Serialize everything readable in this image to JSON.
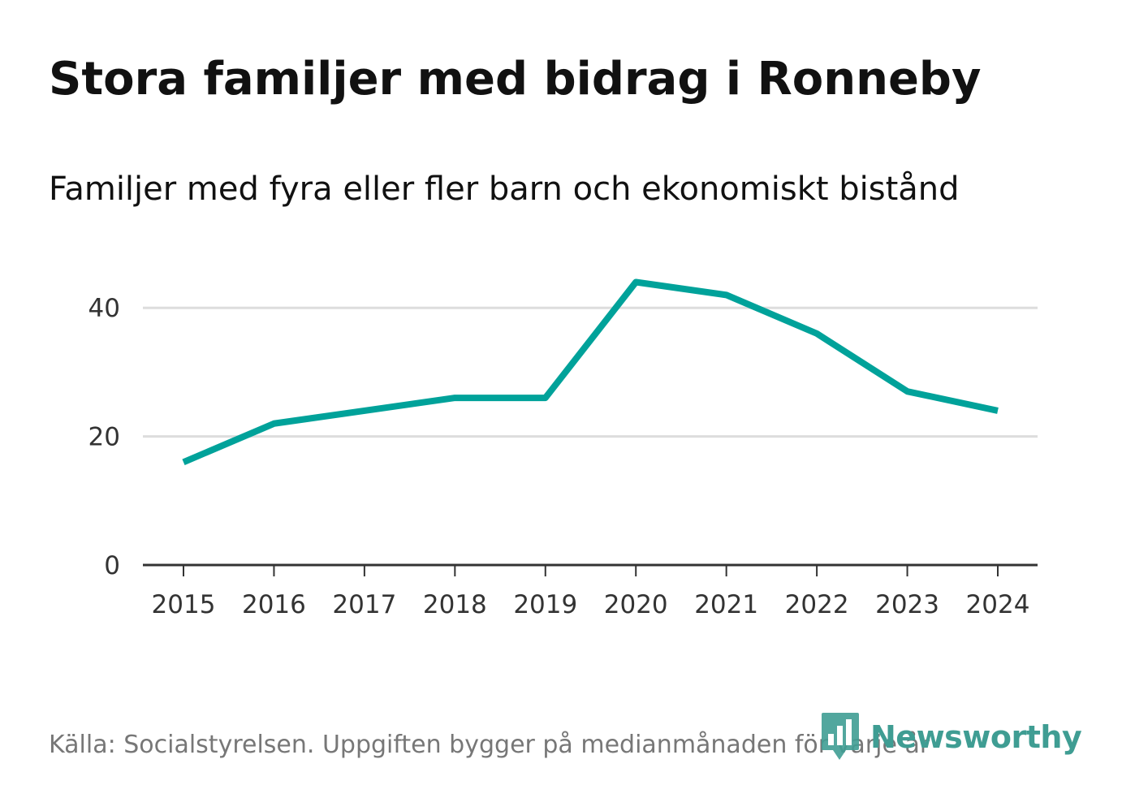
{
  "header": {
    "title": "Stora familjer med bidrag i Ronneby",
    "subtitle": "Familjer med fyra eller fler barn och ekonomiskt bistånd"
  },
  "footer": {
    "source": "Källa: Socialstyrelsen. Uppgiften bygger på medianmånaden för varje år"
  },
  "brand": {
    "name": "Newsworthy",
    "icon": "bar-chart-pin-icon",
    "color": "#3f9d93"
  },
  "chart_data": {
    "type": "line",
    "title": "Stora familjer med bidrag i Ronneby",
    "subtitle": "Familjer med fyra eller fler barn och ekonomiskt bistånd",
    "xlabel": "",
    "ylabel": "",
    "x": [
      "2015",
      "2016",
      "2017",
      "2018",
      "2019",
      "2020",
      "2021",
      "2022",
      "2023",
      "2024"
    ],
    "series": [
      {
        "values": [
          16,
          22,
          24,
          26,
          26,
          44,
          42,
          36,
          27,
          24
        ],
        "color": "#00a29a"
      }
    ],
    "yticks": [
      0,
      20,
      40
    ],
    "ylim": [
      0,
      50
    ],
    "grid": true,
    "legend": "none"
  }
}
